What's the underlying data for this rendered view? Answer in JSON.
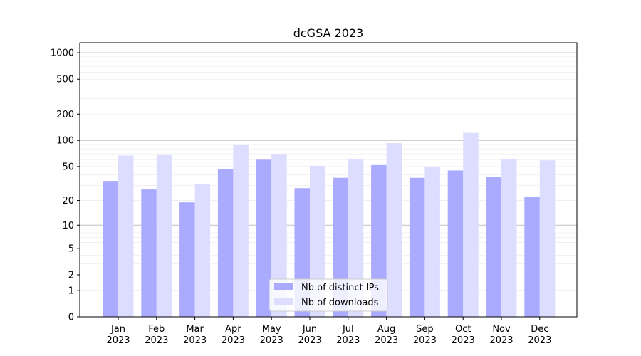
{
  "chart_data": {
    "type": "bar",
    "title": "dcGSA 2023",
    "xlabel": "",
    "ylabel": "",
    "yscale": "symlog",
    "ylim": [
      0,
      1300
    ],
    "grid": "horizontal",
    "legend_position": "lower-center",
    "categories": [
      [
        "Jan",
        "2023"
      ],
      [
        "Feb",
        "2023"
      ],
      [
        "Mar",
        "2023"
      ],
      [
        "Apr",
        "2023"
      ],
      [
        "May",
        "2023"
      ],
      [
        "Jun",
        "2023"
      ],
      [
        "Jul",
        "2023"
      ],
      [
        "Aug",
        "2023"
      ],
      [
        "Sep",
        "2023"
      ],
      [
        "Oct",
        "2023"
      ],
      [
        "Nov",
        "2023"
      ],
      [
        "Dec",
        "2023"
      ]
    ],
    "yticks": [
      0,
      1,
      2,
      5,
      10,
      20,
      50,
      100,
      200,
      500,
      1000
    ],
    "series": [
      {
        "name": "Nb of distinct IPs",
        "color": "#aaaaff",
        "values": [
          34,
          27,
          19,
          47,
          60,
          28,
          37,
          52,
          37,
          45,
          38,
          22
        ]
      },
      {
        "name": "Nb of downloads",
        "color": "#ddddff",
        "values": [
          67,
          69,
          31,
          89,
          70,
          51,
          61,
          93,
          50,
          122,
          61,
          59
        ]
      }
    ]
  }
}
